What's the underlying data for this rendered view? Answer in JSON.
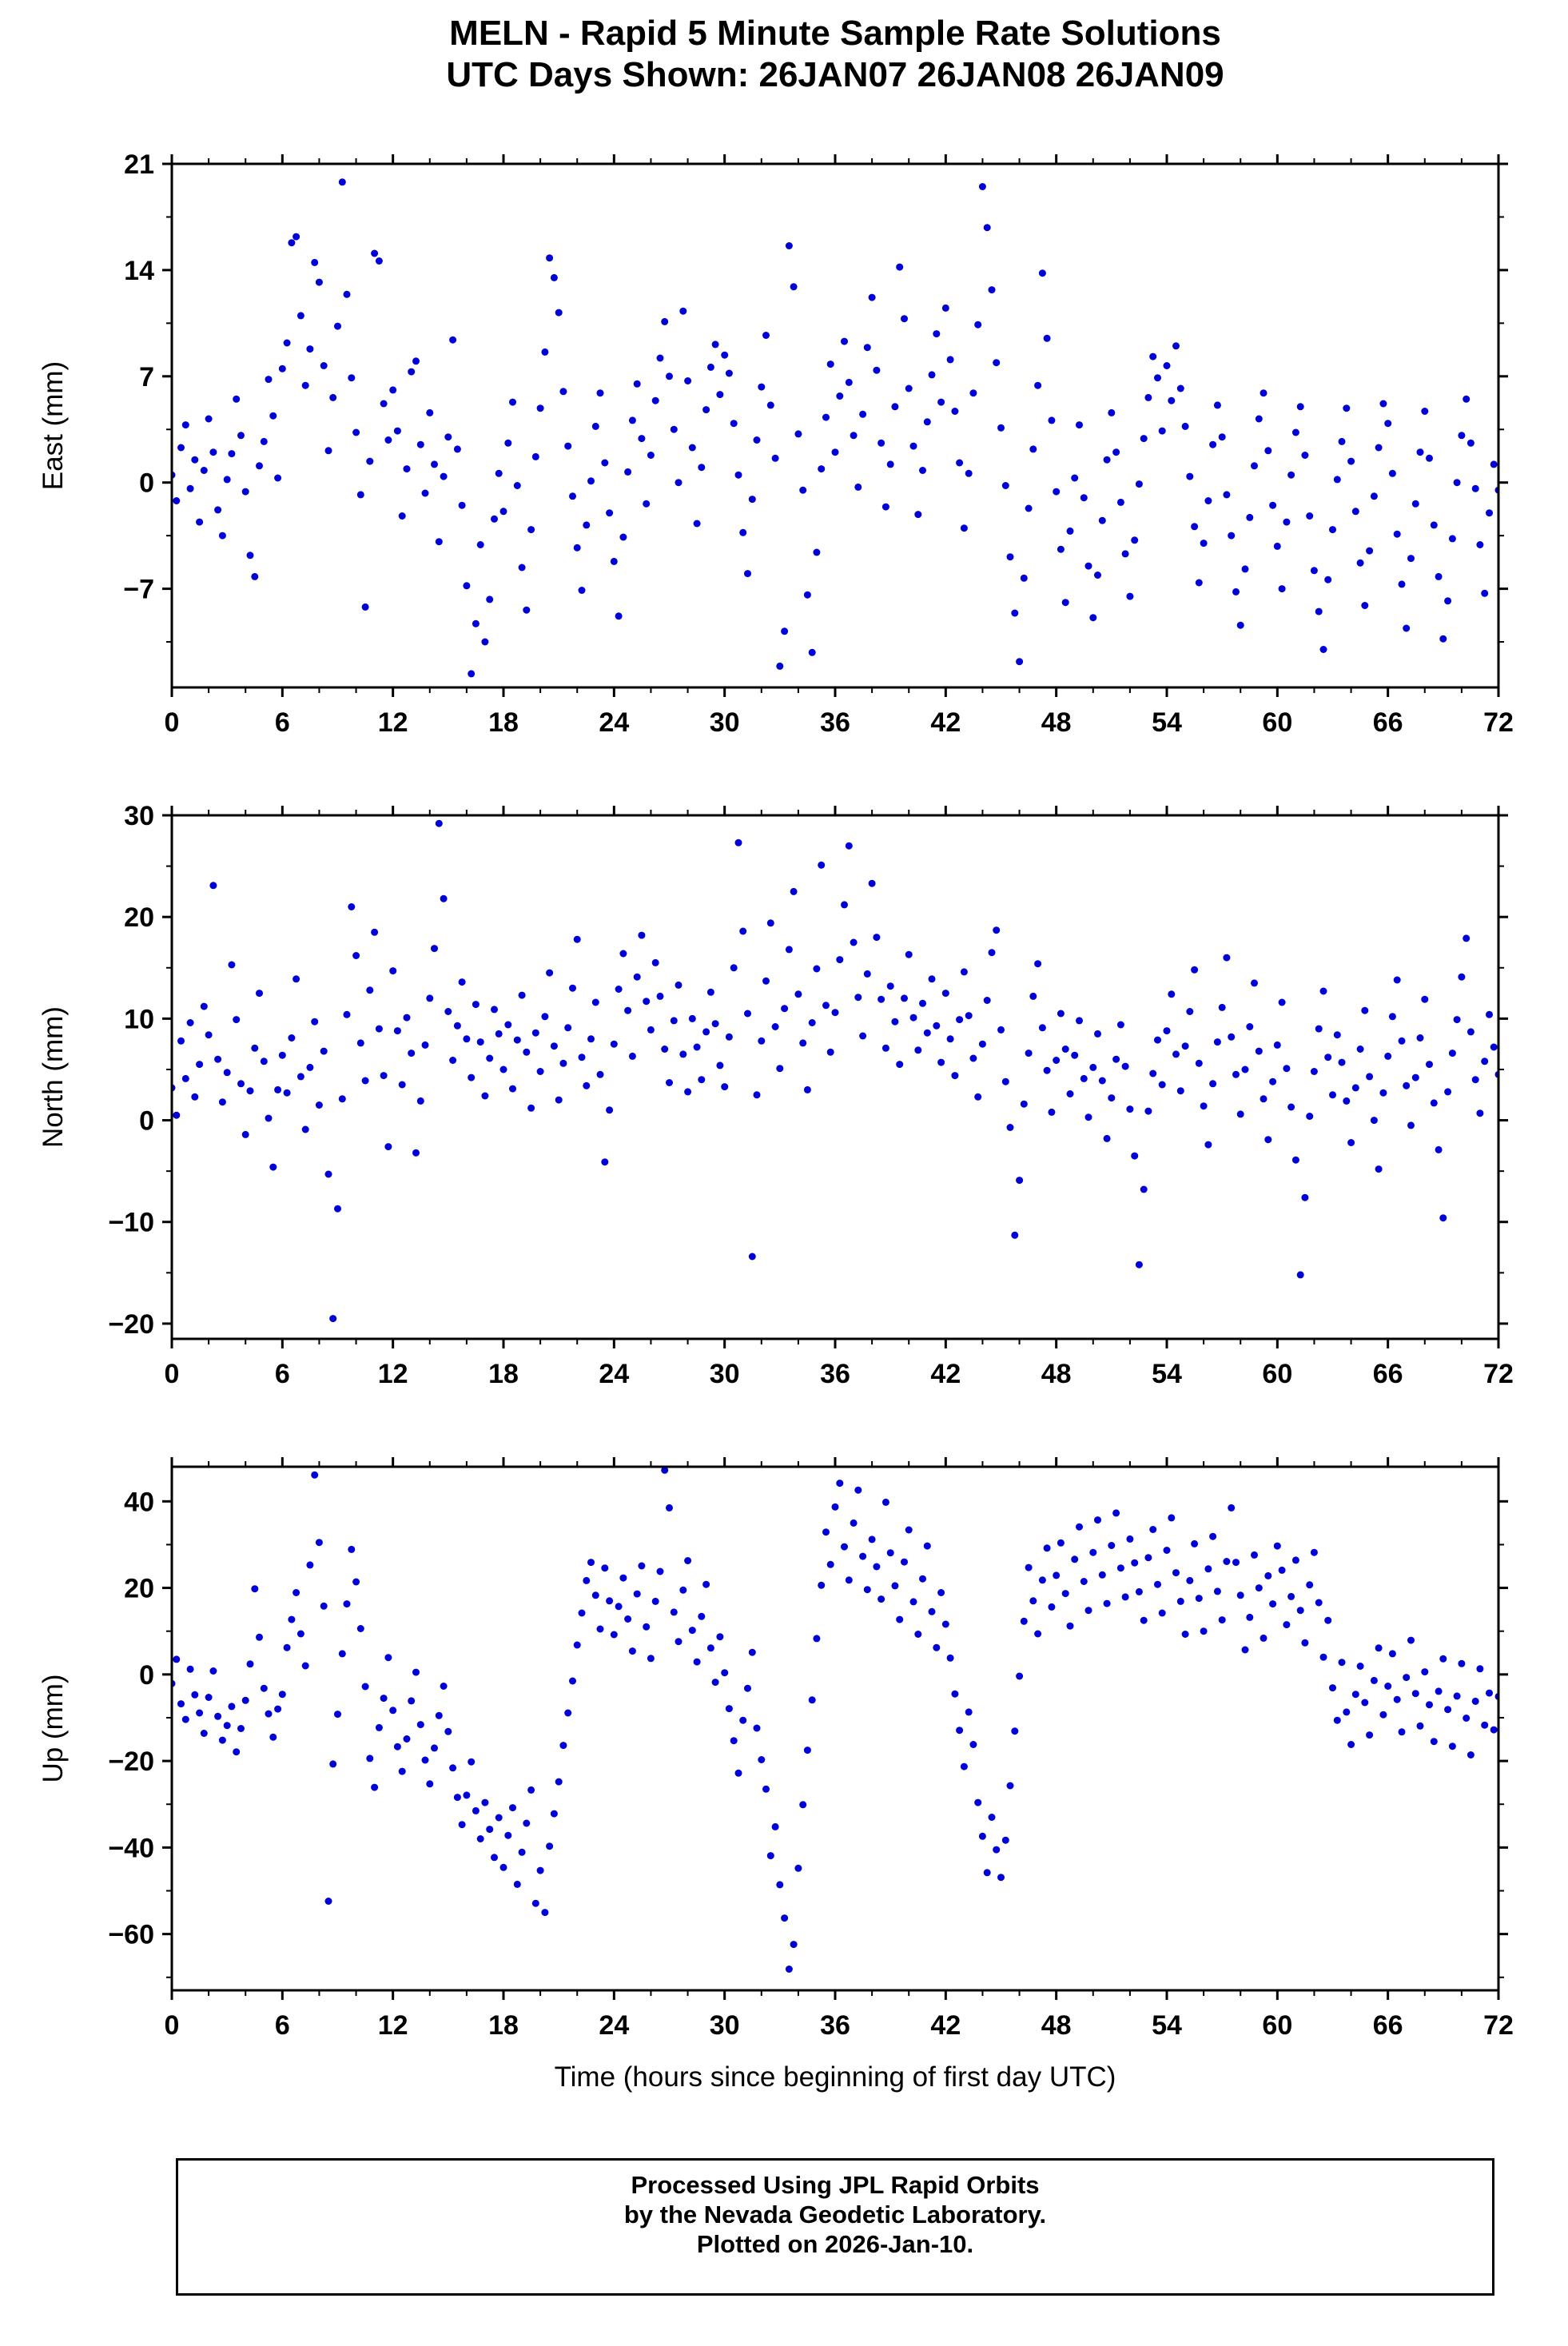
{
  "title": {
    "line1": "MELN - Rapid 5 Minute Sample Rate Solutions",
    "line2": "UTC Days Shown:  26JAN07 26JAN08 26JAN09"
  },
  "footer": {
    "line1": "Processed Using JPL Rapid Orbits",
    "line2": "by the Nevada Geodetic Laboratory.",
    "line3": "Plotted on 2026-Jan-10."
  },
  "style": {
    "point_color": "#0000d9",
    "axis_color": "#000000",
    "background": "#ffffff"
  },
  "chart_data": [
    {
      "type": "scatter",
      "id": "east",
      "ylabel": "East (mm)",
      "xlabel": "",
      "xlim": [
        0,
        72
      ],
      "ylim": [
        -13.5,
        21
      ],
      "xticks": [
        0,
        6,
        12,
        18,
        24,
        30,
        36,
        42,
        48,
        54,
        60,
        66,
        72
      ],
      "yticks": [
        -7,
        0,
        7,
        14,
        21
      ],
      "x_start": 0,
      "x_step": 0.25,
      "y": [
        0.5,
        -1.2,
        2.3,
        3.8,
        -0.4,
        1.5,
        -2.6,
        0.8,
        4.2,
        2.0,
        -1.8,
        -3.5,
        0.2,
        1.9,
        5.5,
        3.1,
        -0.6,
        -4.8,
        -6.2,
        1.1,
        2.7,
        6.8,
        4.4,
        0.3,
        7.5,
        9.2,
        15.8,
        16.2,
        11.0,
        6.4,
        8.8,
        14.5,
        13.2,
        7.7,
        2.1,
        5.6,
        10.3,
        19.8,
        12.4,
        6.9,
        3.3,
        -0.8,
        -8.2,
        1.4,
        15.1,
        14.6,
        5.2,
        2.8,
        6.1,
        3.4,
        -2.2,
        0.9,
        7.3,
        8.0,
        2.5,
        -0.7,
        4.6,
        1.2,
        -3.9,
        0.4,
        3.0,
        9.4,
        2.2,
        -1.5,
        -6.8,
        -12.6,
        -9.3,
        -4.1,
        -10.5,
        -7.7,
        -2.4,
        0.6,
        -1.9,
        2.6,
        5.3,
        -0.2,
        -5.6,
        -8.4,
        -3.1,
        1.7,
        4.9,
        8.6,
        14.8,
        13.5,
        11.2,
        6.0,
        2.4,
        -0.9,
        -4.3,
        -7.1,
        -2.8,
        0.1,
        3.7,
        5.9,
        1.3,
        -2.0,
        -5.2,
        -8.8,
        -3.6,
        0.7,
        4.1,
        6.5,
        2.9,
        -1.4,
        1.8,
        5.4,
        8.2,
        10.6,
        7.0,
        3.5,
        0.0,
        11.3,
        6.7,
        2.3,
        -2.7,
        1.0,
        4.8,
        7.6,
        9.1,
        5.8,
        8.4,
        7.2,
        3.9,
        0.5,
        -3.3,
        -6.0,
        -1.1,
        2.8,
        6.3,
        9.7,
        5.1,
        1.6,
        -12.1,
        -9.8,
        15.6,
        12.9,
        3.2,
        -0.5,
        -7.4,
        -11.2,
        -4.6,
        0.9,
        4.3,
        7.8,
        2.0,
        5.7,
        9.3,
        6.6,
        3.1,
        -0.3,
        4.5,
        8.9,
        12.2,
        7.4,
        2.6,
        -1.6,
        1.2,
        5.0,
        14.2,
        10.8,
        6.2,
        2.4,
        -2.1,
        0.8,
        4.0,
        7.1,
        9.8,
        5.3,
        11.5,
        8.1,
        4.7,
        1.3,
        -3.0,
        0.6,
        5.9,
        10.4,
        19.5,
        16.8,
        12.7,
        7.9,
        3.6,
        -0.2,
        -4.9,
        -8.6,
        -11.8,
        -6.3,
        -1.7,
        2.2,
        6.4,
        13.8,
        9.5,
        4.1,
        -0.6,
        -4.4,
        -7.9,
        -3.2,
        0.3,
        3.8,
        -1.0,
        -5.5,
        -8.9,
        -6.1,
        -2.5,
        1.5,
        4.6,
        2.0,
        -1.3,
        -4.7,
        -7.5,
        -3.8,
        -0.1,
        2.9,
        5.6,
        8.3,
        6.9,
        3.4,
        7.7,
        5.4,
        9.0,
        6.2,
        3.7,
        0.4,
        -2.9,
        -6.6,
        -4.0,
        -1.2,
        2.5,
        5.1,
        3.0,
        -0.8,
        -3.5,
        -7.2,
        -9.4,
        -5.7,
        -2.3,
        1.1,
        4.2,
        5.9,
        2.1,
        -1.5,
        -4.2,
        -7.0,
        -2.6,
        0.5,
        3.3,
        5.0,
        1.8,
        -2.2,
        -5.8,
        -8.5,
        -11.0,
        -6.4,
        -3.1,
        0.2,
        2.7,
        4.9,
        1.4,
        -1.9,
        -5.3,
        -8.1,
        -4.5,
        -0.9,
        2.3,
        5.2,
        3.9,
        0.6,
        -3.4,
        -6.7,
        -9.6,
        -5.0,
        -1.4,
        2.0,
        4.7,
        1.6,
        -2.8,
        -6.2,
        -10.3,
        -7.8,
        -3.7,
        0.0,
        3.1,
        5.5,
        2.6,
        -0.4,
        -4.1,
        -7.3,
        -2.0,
        1.2,
        -0.5
      ]
    },
    {
      "type": "scatter",
      "id": "north",
      "ylabel": "North (mm)",
      "xlabel": "",
      "xlim": [
        0,
        72
      ],
      "ylim": [
        -21.5,
        30
      ],
      "xticks": [
        0,
        6,
        12,
        18,
        24,
        30,
        36,
        42,
        48,
        54,
        60,
        66,
        72
      ],
      "yticks": [
        -20,
        -10,
        0,
        10,
        20,
        30
      ],
      "x_start": 0,
      "x_step": 0.25,
      "y": [
        3.2,
        0.5,
        7.8,
        4.1,
        9.6,
        2.3,
        5.5,
        11.2,
        8.4,
        23.1,
        6.0,
        1.8,
        4.7,
        15.3,
        9.9,
        3.6,
        -1.4,
        2.9,
        7.1,
        12.5,
        5.8,
        0.2,
        -4.6,
        3.0,
        6.4,
        2.7,
        8.1,
        13.9,
        4.3,
        -0.9,
        5.2,
        9.7,
        1.5,
        6.8,
        -5.3,
        -19.5,
        -8.7,
        2.1,
        10.4,
        21.0,
        16.2,
        7.6,
        3.9,
        12.8,
        18.5,
        9.0,
        4.4,
        -2.6,
        14.7,
        8.8,
        3.5,
        10.1,
        6.6,
        -3.2,
        1.9,
        7.4,
        12.0,
        16.9,
        29.2,
        21.8,
        10.7,
        5.9,
        9.3,
        13.6,
        8.0,
        4.2,
        11.4,
        7.7,
        2.4,
        6.1,
        10.9,
        8.5,
        5.0,
        9.4,
        3.1,
        7.9,
        12.3,
        6.7,
        1.2,
        8.6,
        4.8,
        10.2,
        14.5,
        7.3,
        2.0,
        5.6,
        9.1,
        13.0,
        17.8,
        6.2,
        3.4,
        8.0,
        11.6,
        4.5,
        -4.1,
        1.0,
        7.5,
        12.9,
        16.4,
        10.8,
        6.3,
        14.1,
        18.2,
        11.7,
        8.9,
        15.5,
        12.2,
        7.0,
        3.7,
        9.8,
        13.3,
        6.5,
        2.8,
        10.0,
        7.2,
        4.0,
        8.7,
        12.6,
        9.5,
        5.4,
        3.3,
        8.2,
        15.0,
        27.3,
        18.6,
        10.5,
        -13.4,
        2.5,
        7.8,
        13.7,
        19.4,
        9.2,
        5.1,
        11.0,
        16.8,
        22.5,
        12.4,
        7.6,
        3.0,
        9.6,
        14.9,
        25.1,
        11.3,
        6.7,
        10.6,
        15.8,
        21.2,
        27.0,
        17.5,
        12.1,
        8.3,
        14.4,
        23.3,
        18.0,
        11.9,
        7.1,
        13.2,
        9.7,
        5.5,
        12.0,
        16.3,
        10.1,
        6.9,
        11.5,
        8.6,
        13.9,
        9.3,
        5.7,
        12.5,
        8.0,
        4.4,
        9.9,
        14.6,
        10.3,
        6.1,
        2.3,
        7.5,
        11.8,
        16.5,
        18.7,
        8.9,
        3.8,
        -0.7,
        -11.3,
        -5.9,
        1.6,
        6.6,
        12.2,
        15.4,
        9.1,
        4.9,
        0.8,
        5.9,
        10.5,
        7.0,
        2.6,
        6.4,
        9.8,
        4.1,
        0.3,
        5.2,
        8.5,
        3.9,
        -1.8,
        2.2,
        6.0,
        9.4,
        5.3,
        1.1,
        -3.5,
        -14.2,
        -6.8,
        0.9,
        4.6,
        7.9,
        3.5,
        8.8,
        12.4,
        6.5,
        2.9,
        7.3,
        10.7,
        14.8,
        5.6,
        1.4,
        -2.4,
        3.6,
        7.7,
        11.1,
        16.0,
        8.2,
        4.5,
        0.6,
        5.0,
        9.2,
        13.5,
        6.8,
        2.1,
        -1.9,
        3.8,
        7.4,
        11.6,
        5.1,
        1.3,
        -3.9,
        -15.2,
        -7.6,
        0.4,
        4.8,
        9.0,
        12.7,
        6.2,
        2.5,
        8.4,
        5.7,
        1.9,
        -2.2,
        3.2,
        7.0,
        10.8,
        4.3,
        0.0,
        -4.8,
        2.7,
        6.3,
        10.2,
        13.8,
        7.8,
        3.4,
        -0.5,
        4.2,
        8.1,
        11.9,
        5.5,
        1.7,
        -2.9,
        -9.6,
        2.8,
        6.6,
        9.9,
        14.1,
        17.9,
        8.7,
        4.0,
        0.7,
        5.8,
        10.4,
        7.2,
        4.5
      ]
    },
    {
      "type": "scatter",
      "id": "up",
      "ylabel": "Up (mm)",
      "xlabel": "Time (hours since beginning of first day UTC)",
      "xlim": [
        0,
        72
      ],
      "ylim": [
        -73,
        48
      ],
      "xticks": [
        0,
        6,
        12,
        18,
        24,
        30,
        36,
        42,
        48,
        54,
        60,
        66,
        72
      ],
      "yticks": [
        -60,
        -40,
        -20,
        0,
        20,
        40
      ],
      "x_start": 0,
      "x_step": 0.25,
      "y": [
        -2.1,
        3.5,
        -6.8,
        -10.4,
        1.2,
        -4.7,
        -8.9,
        -13.6,
        -5.3,
        0.8,
        -9.7,
        -15.2,
        -11.8,
        -7.4,
        -17.9,
        -12.5,
        -6.0,
        2.4,
        19.8,
        8.6,
        -3.2,
        -9.1,
        -14.5,
        -8.0,
        -4.6,
        6.2,
        12.7,
        18.9,
        9.4,
        2.0,
        25.3,
        46.1,
        30.5,
        15.8,
        -52.4,
        -20.7,
        -9.2,
        4.8,
        16.3,
        28.9,
        21.4,
        10.6,
        -2.8,
        -19.4,
        -26.1,
        -12.3,
        -5.5,
        3.9,
        -8.3,
        -16.7,
        -22.4,
        -14.9,
        -6.1,
        0.5,
        -11.6,
        -19.8,
        -25.3,
        -17.0,
        -9.5,
        -2.7,
        -13.2,
        -21.6,
        -28.4,
        -34.7,
        -27.9,
        -20.2,
        -31.5,
        -38.0,
        -29.6,
        -35.8,
        -42.3,
        -33.1,
        -44.6,
        -37.2,
        -30.8,
        -48.5,
        -41.1,
        -34.4,
        -26.7,
        -52.9,
        -45.3,
        -55.0,
        -39.7,
        -32.2,
        -24.8,
        -16.4,
        -8.9,
        -1.5,
        6.8,
        14.2,
        21.7,
        25.9,
        18.3,
        10.5,
        24.6,
        17.0,
        9.2,
        15.7,
        22.3,
        12.8,
        5.4,
        18.6,
        25.1,
        11.0,
        3.7,
        16.9,
        23.8,
        47.2,
        38.5,
        14.4,
        7.6,
        19.5,
        26.3,
        10.2,
        2.9,
        13.4,
        20.8,
        6.1,
        -1.8,
        8.7,
        0.4,
        -7.9,
        -15.3,
        -22.8,
        -10.6,
        -3.2,
        5.1,
        -12.4,
        -19.7,
        -26.5,
        -41.9,
        -35.2,
        -48.6,
        -56.3,
        -68.1,
        -62.4,
        -44.8,
        -30.1,
        -17.5,
        -5.9,
        8.3,
        20.6,
        32.9,
        25.4,
        38.7,
        44.2,
        29.5,
        21.8,
        35.0,
        42.6,
        27.3,
        19.6,
        31.2,
        24.9,
        17.4,
        39.8,
        28.1,
        20.5,
        12.7,
        26.0,
        33.4,
        16.8,
        9.3,
        22.1,
        29.7,
        14.5,
        6.2,
        18.9,
        11.6,
        3.8,
        -4.5,
        -12.9,
        -21.3,
        -8.7,
        -16.2,
        -29.6,
        -37.4,
        -45.8,
        -33.0,
        -40.5,
        -46.9,
        -38.3,
        -25.7,
        -13.1,
        -0.4,
        12.3,
        24.7,
        17.0,
        9.4,
        21.8,
        29.2,
        15.6,
        22.9,
        30.4,
        18.7,
        11.2,
        26.6,
        34.1,
        21.5,
        14.8,
        28.2,
        35.7,
        23.0,
        16.4,
        29.8,
        37.3,
        24.6,
        17.9,
        31.3,
        25.8,
        19.1,
        12.5,
        27.0,
        33.5,
        20.8,
        14.2,
        28.7,
        36.2,
        23.5,
        16.9,
        9.3,
        21.7,
        30.2,
        17.6,
        10.0,
        24.4,
        31.9,
        19.2,
        12.6,
        26.1,
        38.5,
        25.9,
        18.3,
        5.7,
        13.2,
        27.6,
        20.0,
        8.4,
        22.8,
        16.3,
        29.7,
        24.1,
        11.5,
        18.0,
        26.4,
        14.8,
        7.3,
        20.7,
        28.2,
        16.6,
        4.0,
        12.5,
        -3.1,
        -10.6,
        2.8,
        -8.7,
        -16.2,
        -4.6,
        1.9,
        -6.5,
        -14.0,
        -1.4,
        6.1,
        -9.3,
        -2.7,
        4.8,
        -5.8,
        -13.3,
        -0.7,
        7.9,
        -4.4,
        -11.9,
        0.6,
        -7.0,
        -15.5,
        -3.9,
        3.6,
        -8.1,
        -16.6,
        -5.0,
        2.5,
        -10.1,
        -18.6,
        -6.2,
        1.3,
        -11.7,
        -4.3,
        -12.8,
        -5.1
      ]
    }
  ]
}
